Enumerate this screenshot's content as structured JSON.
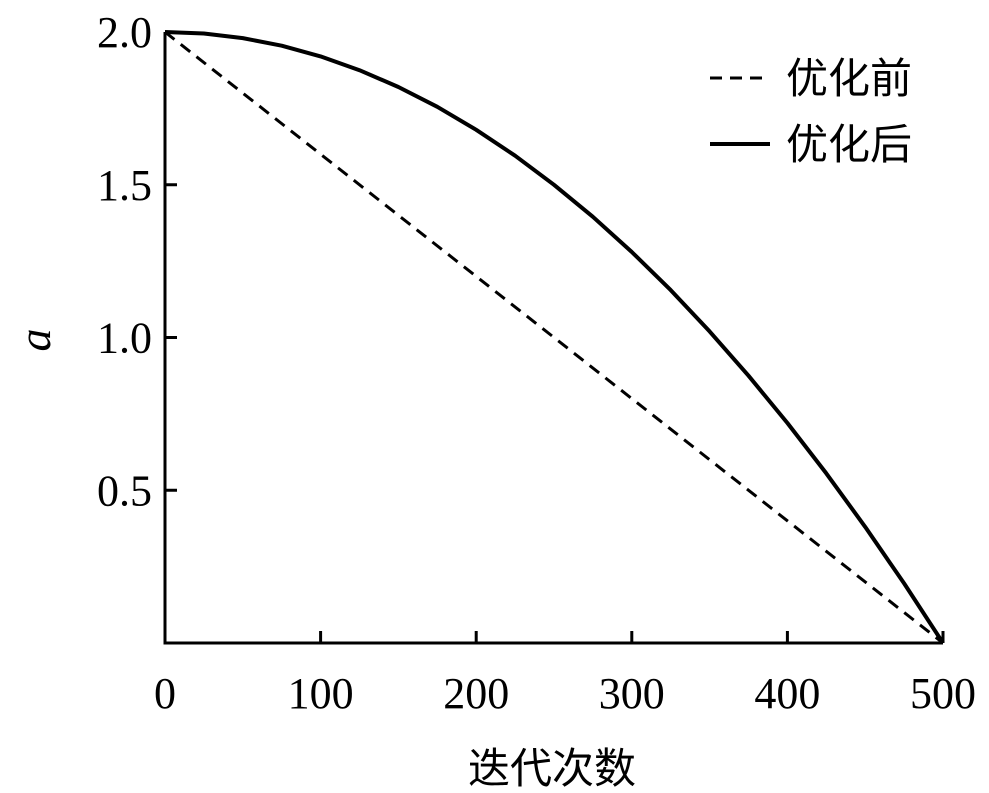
{
  "chart_data": {
    "type": "line",
    "xlabel": "迭代次数",
    "ylabel": "a",
    "xlim": [
      0,
      500
    ],
    "ylim": [
      0,
      2
    ],
    "x_ticks": [
      0,
      100,
      200,
      300,
      400,
      500
    ],
    "x_tick_labels": [
      "0",
      "100",
      "200",
      "300",
      "400",
      "500"
    ],
    "y_ticks": [
      0.5,
      1.0,
      1.5,
      2.0
    ],
    "y_tick_labels": [
      "0.5",
      "1.0",
      "1.5",
      "2.0"
    ],
    "grid": false,
    "legend_position": "top-right",
    "series": [
      {
        "name": "优化前",
        "style": "dashed",
        "color": "#000000",
        "x": [
          0,
          500
        ],
        "y": [
          2.0,
          0.0
        ]
      },
      {
        "name": "优化后",
        "style": "solid",
        "color": "#000000",
        "x": [
          0,
          25,
          50,
          75,
          100,
          125,
          150,
          175,
          200,
          225,
          250,
          275,
          300,
          325,
          350,
          375,
          400,
          425,
          450,
          475,
          500
        ],
        "y": [
          2.0,
          1.995,
          1.98,
          1.955,
          1.92,
          1.875,
          1.82,
          1.755,
          1.68,
          1.595,
          1.5,
          1.395,
          1.28,
          1.155,
          1.02,
          0.875,
          0.72,
          0.555,
          0.38,
          0.195,
          0.0
        ]
      }
    ]
  }
}
